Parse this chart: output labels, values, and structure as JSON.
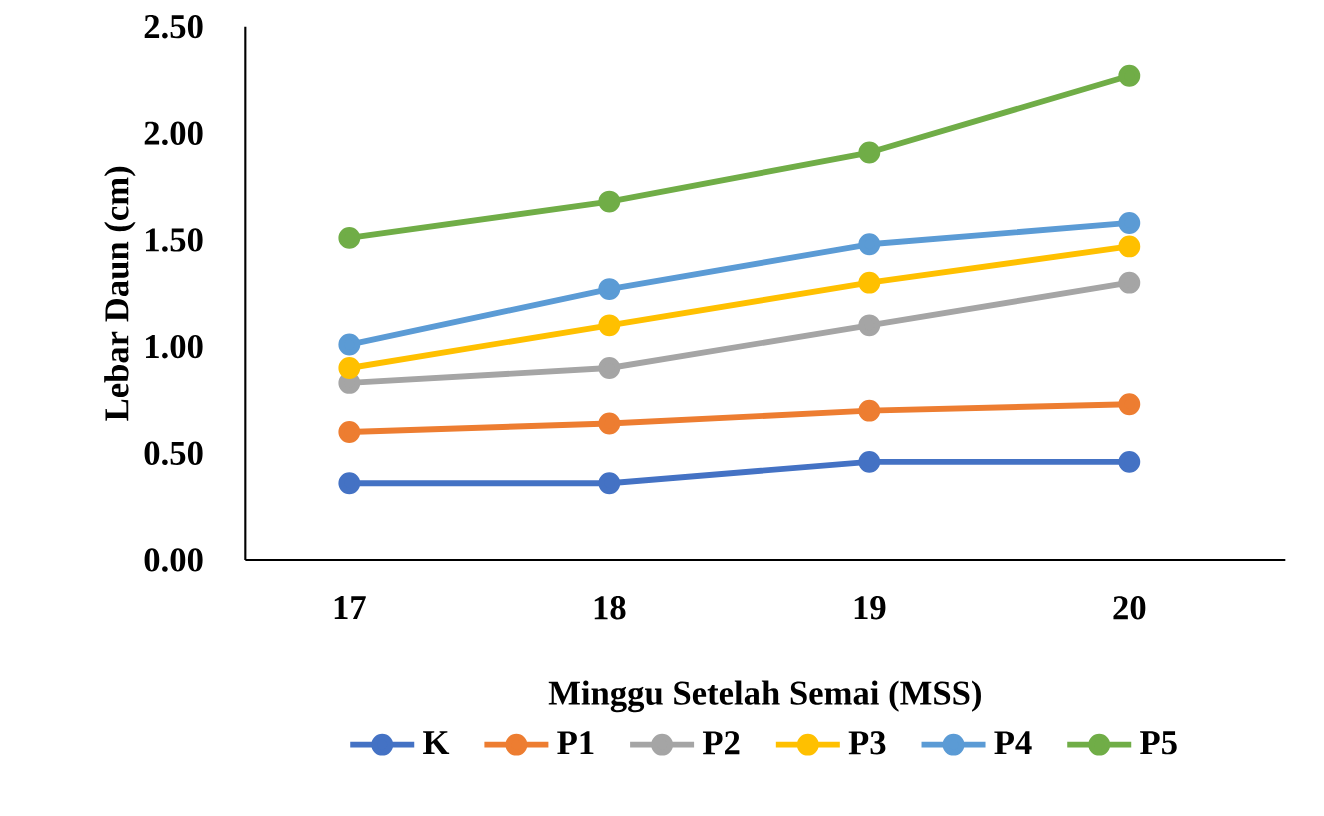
{
  "chart_data": {
    "type": "line",
    "xlabel": "Minggu Setelah Semai (MSS)",
    "ylabel": "Lebar Daun (cm)",
    "categories": [
      "17",
      "18",
      "19",
      "20"
    ],
    "ylim": [
      0,
      2.5
    ],
    "yticks": [
      {
        "value": 0,
        "label": "0.00"
      },
      {
        "value": 0.5,
        "label": "0.50"
      },
      {
        "value": 1,
        "label": "1.00"
      },
      {
        "value": 1.5,
        "label": "1.50"
      },
      {
        "value": 2,
        "label": "2.00"
      },
      {
        "value": 2.5,
        "label": "2.50"
      }
    ],
    "grid": false,
    "legend": "bottom",
    "marker": "circle",
    "line_style": "solid",
    "series": [
      {
        "name": "K",
        "color": "#4472c4",
        "values": [
          0.36,
          0.36,
          0.46,
          0.46
        ]
      },
      {
        "name": "P1",
        "color": "#ed7d31",
        "values": [
          0.6,
          0.64,
          0.7,
          0.73
        ]
      },
      {
        "name": "P2",
        "color": "#a5a5a5",
        "values": [
          0.83,
          0.9,
          1.1,
          1.3
        ]
      },
      {
        "name": "P3",
        "color": "#ffc000",
        "values": [
          0.9,
          1.1,
          1.3,
          1.47
        ]
      },
      {
        "name": "P4",
        "color": "#5b9bd5",
        "values": [
          1.01,
          1.27,
          1.48,
          1.58
        ]
      },
      {
        "name": "P5",
        "color": "#70ad47",
        "values": [
          1.51,
          1.68,
          1.91,
          2.27
        ]
      }
    ]
  }
}
